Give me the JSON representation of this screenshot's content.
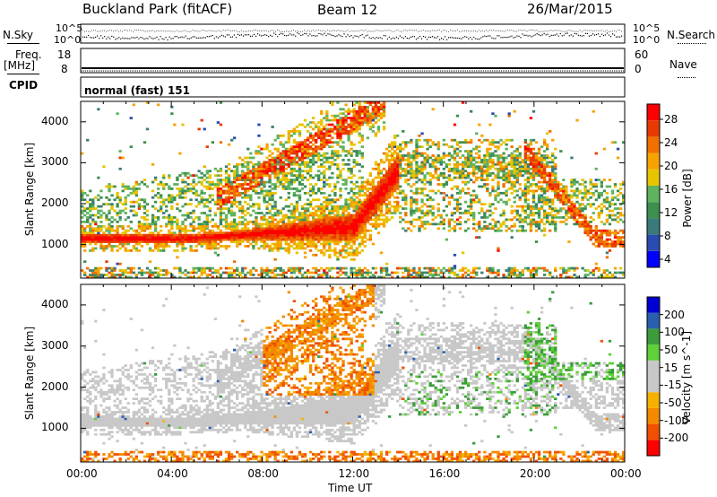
{
  "header": {
    "site": "Buckland Park (fitACF)",
    "beam": "Beam 12",
    "date": "26/Mar/2015"
  },
  "noise_panel": {
    "left_label": "N.Sky",
    "right_label": "N.Search",
    "left_ticks": [
      "10^5",
      "10^0"
    ],
    "right_ticks": [
      "10^5",
      "10^0"
    ]
  },
  "freq_panel": {
    "left_label_1": "Freq.",
    "left_label_2": "[MHz]",
    "right_label": "Nave",
    "left_ticks": [
      "18",
      "8"
    ],
    "right_ticks": [
      "60",
      "0"
    ]
  },
  "cpid": {
    "label": "CPID",
    "value": "normal (fast) 151"
  },
  "colors": {
    "power": [
      "#0000ff",
      "#2a4bb0",
      "#3a7a7a",
      "#3d8f50",
      "#5fb35f",
      "#e8c400",
      "#f6a300",
      "#f07000",
      "#e83a00",
      "#ff0000"
    ],
    "velocity": [
      "#ff0000",
      "#f05000",
      "#f48a00",
      "#f5b000",
      "#c8c8c8",
      "#c8c8c8",
      "#5fd038",
      "#3c9c3c",
      "#2a5fb0",
      "#0000d0"
    ]
  },
  "chart_data": [
    {
      "type": "heatmap",
      "quantity": "power",
      "ylabel": "Slant Range [km]",
      "xlim_hours": [
        0,
        24
      ],
      "ylim_km": [
        180,
        4500
      ],
      "yticks": [
        "1000",
        "2000",
        "3000",
        "4000"
      ],
      "colorbar": {
        "label": "Power [dB]",
        "ticks": [
          "4",
          "8",
          "12",
          "16",
          "20",
          "24",
          "28"
        ]
      }
    },
    {
      "type": "heatmap",
      "quantity": "velocity",
      "ylabel": "Slant Range [km]",
      "xlabel": "Time UT",
      "xlim_hours": [
        0,
        24
      ],
      "ylim_km": [
        180,
        4500
      ],
      "xticks": [
        "00:00",
        "04:00",
        "08:00",
        "12:00",
        "16:00",
        "20:00",
        "00:00"
      ],
      "yticks": [
        "1000",
        "2000",
        "3000",
        "4000"
      ],
      "colorbar": {
        "label": "Velocity [m s^-1]",
        "ticks": [
          "200",
          "100",
          "50",
          "15",
          "-15",
          "-50",
          "-100",
          "-200"
        ]
      }
    }
  ]
}
